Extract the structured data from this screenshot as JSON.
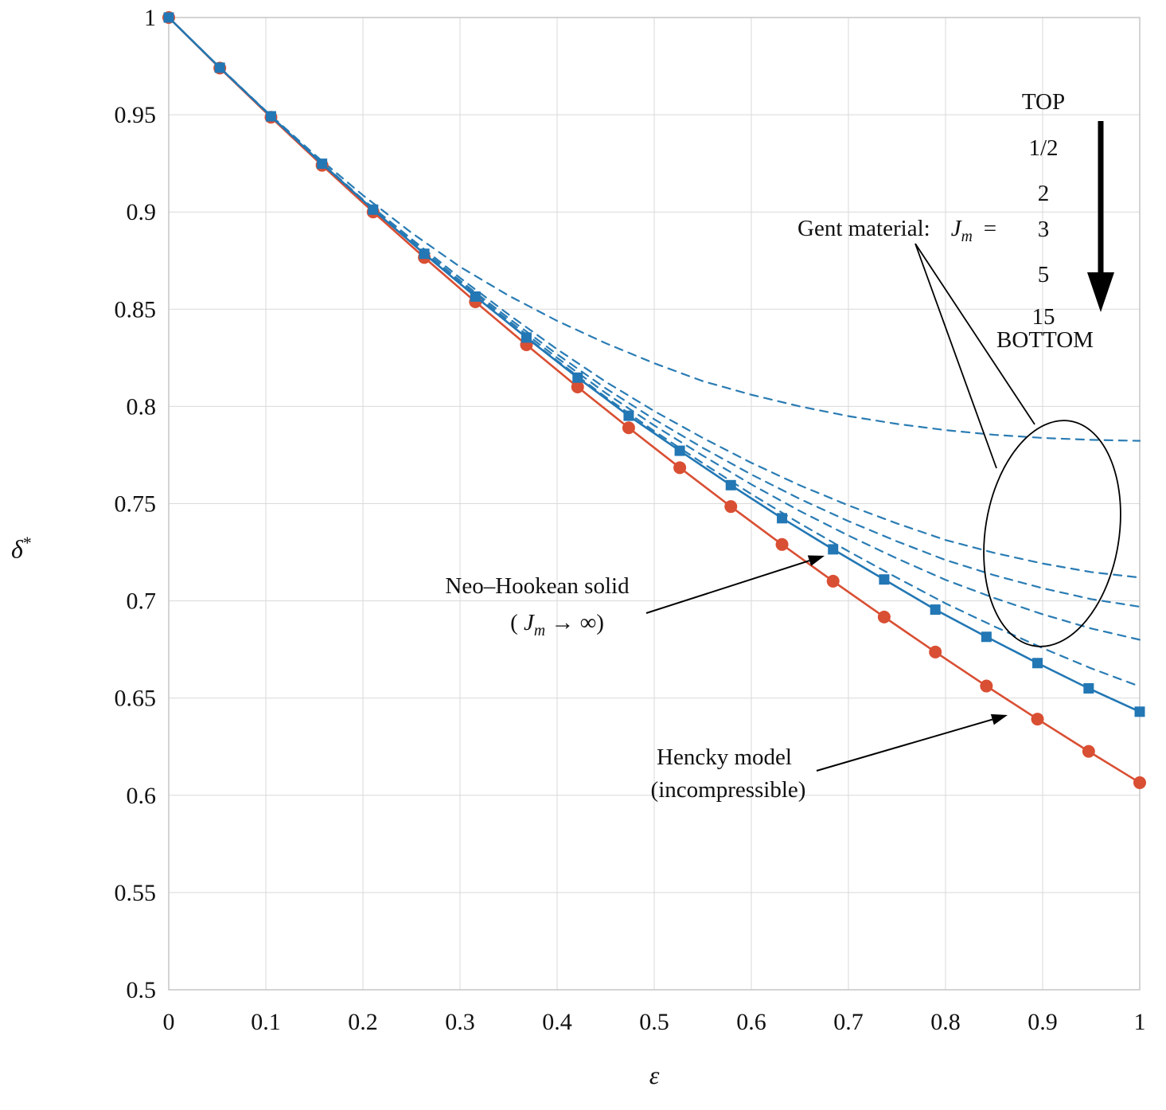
{
  "axis": {
    "ylabel_base": "δ",
    "ylabel_sup": "*",
    "xlabel": "ε"
  },
  "annotations": {
    "gent": {
      "label": "Gent material:",
      "var": "J",
      "sub": "m",
      "equals": "=",
      "top": "TOP",
      "values": [
        "1/2",
        "2",
        "3",
        "5",
        "15"
      ],
      "bottom": "BOTTOM"
    },
    "neo": {
      "line1": "Neo–Hookean solid",
      "open": "( ",
      "var": "J",
      "sub": "m",
      "rest": " → ∞)"
    },
    "hencky": {
      "line1": "Hencky model",
      "line2": "(incompressible)"
    }
  },
  "chart_data": {
    "type": "line",
    "title": "",
    "xlabel": "ε",
    "ylabel": "δ*",
    "xlim": [
      0,
      1
    ],
    "ylim": [
      0.5,
      1
    ],
    "x_ticks": [
      "0",
      "0.1",
      "0.2",
      "0.3",
      "0.4",
      "0.5",
      "0.6",
      "0.7",
      "0.8",
      "0.9",
      "1"
    ],
    "y_ticks": [
      "0.5",
      "0.55",
      "0.6",
      "0.65",
      "0.7",
      "0.75",
      "0.8",
      "0.85",
      "0.9",
      "0.95",
      "1"
    ],
    "grid": true,
    "grid_color": "#d9d9d9",
    "frame_color": "#c6c6c6",
    "legend_position": "none",
    "series": [
      {
        "id": "gent-jm-1-2",
        "label": "Gent material, Jm = 1/2",
        "style": "dashed",
        "marker": "none",
        "color": "#2a7cb4",
        "width": 2.2,
        "x": [
          0,
          0.05,
          0.1,
          0.15,
          0.2,
          0.25,
          0.3,
          0.35,
          0.4,
          0.45,
          0.5,
          0.55,
          0.6,
          0.65,
          0.7,
          0.75,
          0.8,
          0.85,
          0.9,
          0.95,
          1
        ],
        "y": [
          1,
          0.9756,
          0.952,
          0.9296,
          0.9086,
          0.8893,
          0.8718,
          0.857,
          0.844,
          0.8325,
          0.8222,
          0.813,
          0.806,
          0.8,
          0.795,
          0.791,
          0.7878,
          0.7854,
          0.7838,
          0.7828,
          0.7823
        ]
      },
      {
        "id": "gent-jm-2",
        "label": "Gent material, Jm = 2",
        "style": "dashed",
        "marker": "none",
        "color": "#2a7cb4",
        "width": 2.2,
        "x": [
          0,
          0.05,
          0.1,
          0.15,
          0.2,
          0.25,
          0.3,
          0.35,
          0.4,
          0.45,
          0.5,
          0.55,
          0.6,
          0.65,
          0.7,
          0.75,
          0.8,
          0.85,
          0.9,
          0.95,
          1
        ],
        "y": [
          1,
          0.9755,
          0.9518,
          0.9288,
          0.9064,
          0.8861,
          0.8661,
          0.8473,
          0.8294,
          0.8127,
          0.7976,
          0.7838,
          0.771,
          0.7594,
          0.7491,
          0.7398,
          0.7313,
          0.7247,
          0.7192,
          0.7148,
          0.712
        ]
      },
      {
        "id": "gent-jm-3",
        "label": "Gent material, Jm = 3",
        "style": "dashed",
        "marker": "none",
        "color": "#2a7cb4",
        "width": 2.2,
        "x": [
          0,
          0.05,
          0.1,
          0.15,
          0.2,
          0.25,
          0.3,
          0.35,
          0.4,
          0.45,
          0.5,
          0.55,
          0.6,
          0.65,
          0.7,
          0.75,
          0.8,
          0.85,
          0.9,
          0.95,
          1
        ],
        "y": [
          1,
          0.9755,
          0.9517,
          0.9286,
          0.906,
          0.8852,
          0.8647,
          0.8454,
          0.8268,
          0.8093,
          0.7934,
          0.7787,
          0.765,
          0.7524,
          0.741,
          0.7306,
          0.721,
          0.7132,
          0.7065,
          0.7009,
          0.697
        ]
      },
      {
        "id": "gent-jm-5",
        "label": "Gent material, Jm = 5",
        "style": "dashed",
        "marker": "none",
        "color": "#2a7cb4",
        "width": 2.2,
        "x": [
          0,
          0.05,
          0.1,
          0.15,
          0.2,
          0.25,
          0.3,
          0.35,
          0.4,
          0.45,
          0.5,
          0.55,
          0.6,
          0.65,
          0.7,
          0.75,
          0.8,
          0.85,
          0.9,
          0.95,
          1
        ],
        "y": [
          1,
          0.9755,
          0.9517,
          0.9285,
          0.906,
          0.8846,
          0.8639,
          0.8441,
          0.825,
          0.8069,
          0.7902,
          0.7747,
          0.7599,
          0.7462,
          0.7336,
          0.7218,
          0.7108,
          0.7015,
          0.6931,
          0.6858,
          0.68
        ]
      },
      {
        "id": "gent-jm-15",
        "label": "Gent material, Jm = 15",
        "style": "dashed",
        "marker": "none",
        "color": "#2a7cb4",
        "width": 2.2,
        "x": [
          0,
          0.05,
          0.1,
          0.15,
          0.2,
          0.25,
          0.3,
          0.35,
          0.4,
          0.45,
          0.5,
          0.55,
          0.6,
          0.65,
          0.7,
          0.75,
          0.8,
          0.85,
          0.9,
          0.95,
          1
        ],
        "y": [
          1,
          0.9755,
          0.9517,
          0.9285,
          0.9059,
          0.8843,
          0.8633,
          0.843,
          0.8235,
          0.8048,
          0.7873,
          0.7708,
          0.7549,
          0.7398,
          0.7255,
          0.7119,
          0.6987,
          0.6869,
          0.6757,
          0.6653,
          0.656
        ]
      },
      {
        "id": "hencky",
        "label": "Hencky model (incompressible)",
        "style": "solid",
        "marker": "circle",
        "color": "#d94f33",
        "width": 2.6,
        "x": [
          0,
          0.0526,
          0.1053,
          0.1579,
          0.2105,
          0.2632,
          0.3158,
          0.3684,
          0.4211,
          0.4737,
          0.5263,
          0.5789,
          0.6316,
          0.6842,
          0.7368,
          0.7895,
          0.8421,
          0.8947,
          0.9474,
          1
        ],
        "y": [
          1,
          0.974,
          0.9487,
          0.924,
          0.9,
          0.8766,
          0.8538,
          0.8317,
          0.81,
          0.789,
          0.7685,
          0.7485,
          0.729,
          0.7101,
          0.6917,
          0.6737,
          0.6562,
          0.6392,
          0.6226,
          0.6065
        ]
      },
      {
        "id": "neo-hookean",
        "label": "Neo–Hookean solid (Jm → ∞)",
        "style": "solid",
        "marker": "square",
        "color": "#2277b4",
        "width": 2.6,
        "x": [
          0,
          0.0526,
          0.1053,
          0.1579,
          0.2105,
          0.2632,
          0.3158,
          0.3684,
          0.4211,
          0.4737,
          0.5263,
          0.5789,
          0.6316,
          0.6842,
          0.7368,
          0.7895,
          0.8421,
          0.8947,
          0.9474,
          1
        ],
        "y": [
          1,
          0.9742,
          0.9492,
          0.9248,
          0.9012,
          0.8785,
          0.8565,
          0.8354,
          0.8148,
          0.7952,
          0.7772,
          0.7595,
          0.7425,
          0.7265,
          0.711,
          0.6955,
          0.6815,
          0.668,
          0.655,
          0.643
        ]
      }
    ]
  }
}
